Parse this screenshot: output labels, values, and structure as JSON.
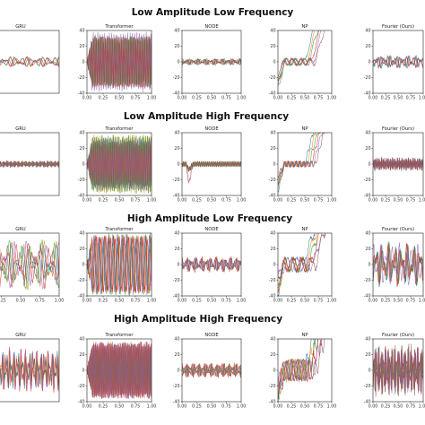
{
  "row_titles": [
    "Low Amplitude Low Frequency",
    "Low Amplitude High Frequency",
    "High Amplitude Low Frequency",
    "High Amplitude High Frequency"
  ],
  "colors": [
    "#1f77b4",
    "#ff7f0e",
    "#2ca02c",
    "#d62728",
    "#9467bd",
    "#8c564b",
    "#e377c2",
    "#7f7f7f"
  ],
  "chart_data": [
    {
      "type": "line",
      "row": 0,
      "col": 0,
      "title": "GRU",
      "xlim": [
        0,
        1
      ],
      "ylim": [
        -40,
        40
      ],
      "x_ticks": [],
      "y_ticks": [],
      "behavior": "lowamp",
      "freq": 7,
      "amp": 6
    },
    {
      "type": "line",
      "row": 0,
      "col": 1,
      "title": "Transformer",
      "xlim": [
        0,
        1
      ],
      "ylim": [
        -40,
        40
      ],
      "x_ticks": [
        "0.00",
        "0.25",
        "0.50",
        "0.75",
        "1.00"
      ],
      "y_ticks": [
        "40",
        "20",
        "0",
        "-20",
        "-40"
      ],
      "behavior": "dense",
      "freq": 28,
      "amp": 34
    },
    {
      "type": "line",
      "row": 0,
      "col": 2,
      "title": "NODE",
      "xlim": [
        0,
        1
      ],
      "ylim": [
        -40,
        40
      ],
      "x_ticks": [
        "0.00",
        "0.25",
        "0.50",
        "0.75",
        "1.00"
      ],
      "y_ticks": [
        "40",
        "20",
        "0",
        "-20",
        "-40"
      ],
      "behavior": "lowamp",
      "freq": 10,
      "amp": 4
    },
    {
      "type": "line",
      "row": 0,
      "col": 3,
      "title": "NP",
      "xlim": [
        0,
        1
      ],
      "ylim": [
        -40,
        40
      ],
      "x_ticks": [
        "0.00",
        "0.25",
        "0.50",
        "0.75",
        "1.00"
      ],
      "y_ticks": [
        "40",
        "20",
        "0",
        "-20",
        "-40"
      ],
      "behavior": "np",
      "freq": 6,
      "amp": 10
    },
    {
      "type": "line",
      "row": 0,
      "col": 4,
      "title": "Fourier (Ours)",
      "xlim": [
        0,
        1
      ],
      "ylim": [
        -40,
        40
      ],
      "x_ticks": [
        "0.00",
        "0.25",
        "0.50",
        "0.75",
        "1.00"
      ],
      "y_ticks": [
        "40",
        "20",
        "0",
        "-20",
        "-40"
      ],
      "behavior": "lowamp",
      "freq": 8,
      "amp": 8
    },
    {
      "type": "line",
      "row": 1,
      "col": 0,
      "title": "GRU",
      "xlim": [
        0,
        1
      ],
      "ylim": [
        -40,
        40
      ],
      "x_ticks": [],
      "y_ticks": [],
      "behavior": "lowamp",
      "freq": 30,
      "amp": 4
    },
    {
      "type": "line",
      "row": 1,
      "col": 1,
      "title": "Transformer",
      "xlim": [
        0,
        1
      ],
      "ylim": [
        -40,
        40
      ],
      "x_ticks": [
        "0.00",
        "0.25",
        "0.50",
        "0.75",
        "1.00"
      ],
      "y_ticks": [
        "40",
        "20",
        "0",
        "-20",
        "-40"
      ],
      "behavior": "dense",
      "freq": 34,
      "amp": 30
    },
    {
      "type": "line",
      "row": 1,
      "col": 2,
      "title": "NODE",
      "xlim": [
        0,
        1
      ],
      "ylim": [
        -40,
        40
      ],
      "x_ticks": [
        "0.00",
        "0.25",
        "0.50",
        "0.75",
        "1.00"
      ],
      "y_ticks": [
        "40",
        "20",
        "0",
        "-20",
        "-40"
      ],
      "behavior": "node_hf",
      "freq": 30,
      "amp": 3
    },
    {
      "type": "line",
      "row": 1,
      "col": 3,
      "title": "NP",
      "xlim": [
        0,
        1
      ],
      "ylim": [
        -40,
        40
      ],
      "x_ticks": [
        "0.00",
        "0.25",
        "0.50",
        "0.75",
        "1.00"
      ],
      "y_ticks": [
        "40",
        "20",
        "0",
        "-20",
        "-40"
      ],
      "behavior": "np",
      "freq": 14,
      "amp": 8
    },
    {
      "type": "line",
      "row": 1,
      "col": 4,
      "title": "Fourier (Ours)",
      "xlim": [
        0,
        1
      ],
      "ylim": [
        -40,
        40
      ],
      "x_ticks": [
        "0.00",
        "0.25",
        "0.50",
        "0.75",
        "1.00"
      ],
      "y_ticks": [
        "40",
        "20",
        "0",
        "-20",
        "-40"
      ],
      "behavior": "lowamp",
      "freq": 32,
      "amp": 9
    },
    {
      "type": "line",
      "row": 2,
      "col": 0,
      "title": "GRU",
      "xlim": [
        0,
        1
      ],
      "ylim": [
        -40,
        40
      ],
      "x_ticks": [
        "0.25",
        "0.50",
        "0.75",
        "1.00"
      ],
      "y_ticks": [],
      "behavior": "lowamp",
      "freq": 7,
      "amp": 28
    },
    {
      "type": "line",
      "row": 2,
      "col": 1,
      "title": "Transformer",
      "xlim": [
        0,
        1
      ],
      "ylim": [
        -40,
        40
      ],
      "x_ticks": [
        "0.00",
        "0.25",
        "0.50",
        "0.75",
        "1.00"
      ],
      "y_ticks": [
        "40",
        "20",
        "0",
        "-20",
        "-40"
      ],
      "behavior": "dense",
      "freq": 14,
      "amp": 34
    },
    {
      "type": "line",
      "row": 2,
      "col": 2,
      "title": "NODE",
      "xlim": [
        0,
        1
      ],
      "ylim": [
        -40,
        40
      ],
      "x_ticks": [
        "0.00",
        "0.25",
        "0.50",
        "0.75",
        "1.00"
      ],
      "y_ticks": [
        "40",
        "20",
        "0",
        "-20",
        "-40"
      ],
      "behavior": "lowamp",
      "freq": 12,
      "amp": 9
    },
    {
      "type": "line",
      "row": 2,
      "col": 3,
      "title": "NP",
      "xlim": [
        0,
        1
      ],
      "ylim": [
        -40,
        40
      ],
      "x_ticks": [
        "0.00",
        "0.25",
        "0.50",
        "0.75",
        "1.00"
      ],
      "y_ticks": [
        "40",
        "20",
        "0",
        "-20",
        "-40"
      ],
      "behavior": "np",
      "freq": 6,
      "amp": 20
    },
    {
      "type": "line",
      "row": 2,
      "col": 4,
      "title": "Fourier (Ours)",
      "xlim": [
        0,
        1
      ],
      "ylim": [
        -40,
        40
      ],
      "x_ticks": [
        "0.00",
        "0.25",
        "0.50",
        "0.75",
        "1.00"
      ],
      "y_ticks": [
        "40",
        "20",
        "0",
        "-20",
        "-40"
      ],
      "behavior": "lowamp",
      "freq": 8,
      "amp": 28
    },
    {
      "type": "line",
      "row": 3,
      "col": 0,
      "title": "GRU",
      "xlim": [
        0,
        1
      ],
      "ylim": [
        -40,
        40
      ],
      "x_ticks": [],
      "y_ticks": [],
      "behavior": "lowamp",
      "freq": 20,
      "amp": 25
    },
    {
      "type": "line",
      "row": 3,
      "col": 1,
      "title": "Transformer",
      "xlim": [
        0,
        1
      ],
      "ylim": [
        -40,
        40
      ],
      "x_ticks": [
        "0.00",
        "0.25",
        "0.50",
        "0.75",
        "1.00"
      ],
      "y_ticks": [
        "40",
        "20",
        "0",
        "-20",
        "-40"
      ],
      "behavior": "dense",
      "freq": 34,
      "amp": 32
    },
    {
      "type": "line",
      "row": 3,
      "col": 2,
      "title": "NODE",
      "xlim": [
        0,
        1
      ],
      "ylim": [
        -40,
        40
      ],
      "x_ticks": [
        "0.00",
        "0.25",
        "0.50",
        "0.75",
        "1.00"
      ],
      "y_ticks": [
        "40",
        "20",
        "0",
        "-20",
        "-40"
      ],
      "behavior": "lowamp",
      "freq": 14,
      "amp": 8
    },
    {
      "type": "line",
      "row": 3,
      "col": 3,
      "title": "NP",
      "xlim": [
        0,
        1
      ],
      "ylim": [
        -40,
        40
      ],
      "x_ticks": [
        "0.00",
        "0.25",
        "0.50",
        "0.75",
        "1.00"
      ],
      "y_ticks": [
        "40",
        "20",
        "0",
        "-20",
        "-40"
      ],
      "behavior": "np",
      "freq": 10,
      "amp": 30
    },
    {
      "type": "line",
      "row": 3,
      "col": 4,
      "title": "Fourier (Ours)",
      "xlim": [
        0,
        1
      ],
      "ylim": [
        -40,
        40
      ],
      "x_ticks": [
        "0.00",
        "0.25",
        "0.50",
        "0.75",
        "1.00"
      ],
      "y_ticks": [
        "40",
        "20",
        "0",
        "-20",
        "-40"
      ],
      "behavior": "lowamp",
      "freq": 22,
      "amp": 30
    }
  ]
}
